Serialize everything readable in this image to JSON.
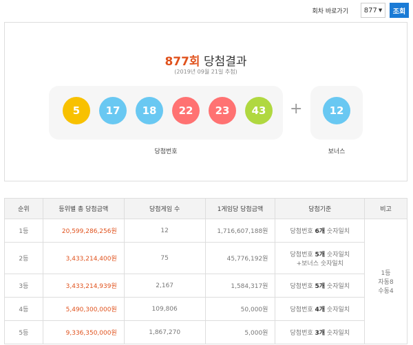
{
  "header": {
    "goto_label": "회차 바로가기",
    "selected_round": "877",
    "search_button": "조회"
  },
  "result": {
    "round_number": "877회",
    "title_suffix": "당첨결과",
    "draw_date": "(2019년 09월 21일 추첨)",
    "winning_numbers": [
      "5",
      "17",
      "18",
      "22",
      "23",
      "43"
    ],
    "ball_colors": [
      "#f8c100",
      "#69c8f2",
      "#69c8f2",
      "#ff7272",
      "#ff7272",
      "#b0d840"
    ],
    "bonus_number": "12",
    "bonus_color": "#69c8f2",
    "plus_sign": "+",
    "winning_label": "당첨번호",
    "bonus_label": "보너스"
  },
  "table": {
    "headers": [
      "순위",
      "등위별 총 당첨금액",
      "당첨게임 수",
      "1게임당 당첨금액",
      "당첨기준",
      "비고"
    ],
    "rows": [
      {
        "rank": "1등",
        "total": "20,599,286,256원",
        "games": "12",
        "per_game": "1,716,607,188원",
        "c1": "당첨번호 ",
        "c2": "6개",
        "c3": " 숫자일치",
        "c4": ""
      },
      {
        "rank": "2등",
        "total": "3,433,214,400원",
        "games": "75",
        "per_game": "45,776,192원",
        "c1": "당첨번호 ",
        "c2": "5개",
        "c3": " 숫자일치",
        "c4": "+보너스 숫자일치"
      },
      {
        "rank": "3등",
        "total": "3,433,214,939원",
        "games": "2,167",
        "per_game": "1,584,317원",
        "c1": "당첨번호 ",
        "c2": "5개",
        "c3": " 숫자일치",
        "c4": ""
      },
      {
        "rank": "4등",
        "total": "5,490,300,000원",
        "games": "109,806",
        "per_game": "50,000원",
        "c1": "당첨번호 ",
        "c2": "4개",
        "c3": " 숫자일치",
        "c4": ""
      },
      {
        "rank": "5등",
        "total": "9,336,350,000원",
        "games": "1,867,270",
        "per_game": "5,000원",
        "c1": "당첨번호 ",
        "c2": "3개",
        "c3": " 숫자일치",
        "c4": ""
      }
    ],
    "note": [
      "1등",
      "자동8",
      "수동4"
    ]
  }
}
